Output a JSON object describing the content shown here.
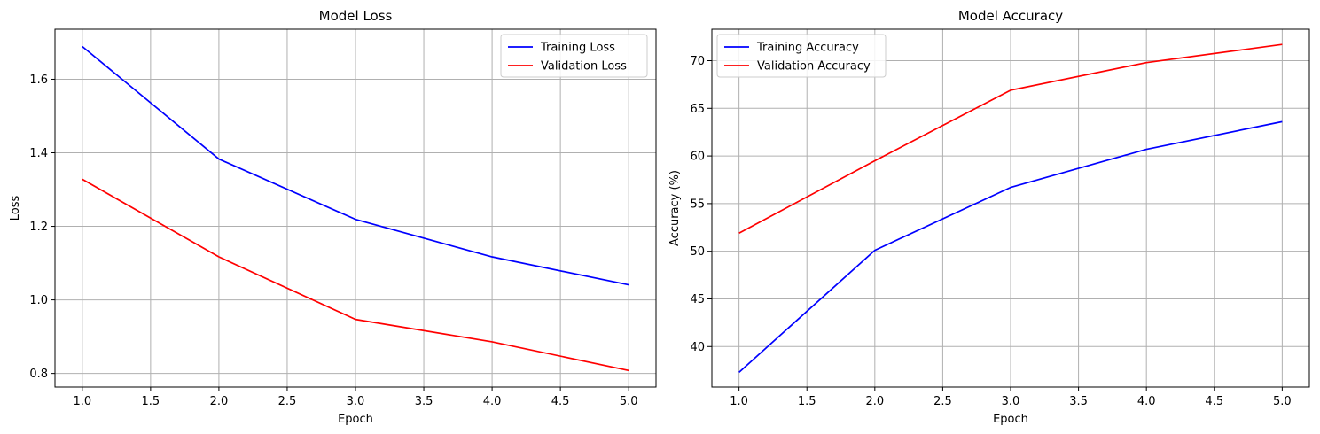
{
  "chart_data": [
    {
      "type": "line",
      "title": "Model Loss",
      "xlabel": "Epoch",
      "ylabel": "Loss",
      "x": [
        1,
        2,
        3,
        4,
        5
      ],
      "xlim": [
        0.8,
        5.2
      ],
      "ylim": [
        0.763,
        1.736
      ],
      "xticks": [
        "1.0",
        "1.5",
        "2.0",
        "2.5",
        "3.0",
        "3.5",
        "4.0",
        "4.5",
        "5.0"
      ],
      "yticks": [
        "0.8",
        "1.0",
        "1.2",
        "1.4",
        "1.6"
      ],
      "grid": true,
      "legend_position": "top-right",
      "series": [
        {
          "name": "Training Loss",
          "color": "#0000ff",
          "values": [
            1.689,
            1.383,
            1.219,
            1.117,
            1.041
          ]
        },
        {
          "name": "Validation Loss",
          "color": "#ff0000",
          "values": [
            1.328,
            1.117,
            0.947,
            0.886,
            0.808
          ]
        }
      ]
    },
    {
      "type": "line",
      "title": "Model Accuracy",
      "xlabel": "Epoch",
      "ylabel": "Accuracy (%)",
      "x": [
        1,
        2,
        3,
        4,
        5
      ],
      "xlim": [
        0.8,
        5.2
      ],
      "ylim": [
        35.75,
        73.3
      ],
      "xticks": [
        "1.0",
        "1.5",
        "2.0",
        "2.5",
        "3.0",
        "3.5",
        "4.0",
        "4.5",
        "5.0"
      ],
      "yticks": [
        "40",
        "45",
        "50",
        "55",
        "60",
        "65",
        "70"
      ],
      "grid": true,
      "legend_position": "top-left",
      "series": [
        {
          "name": "Training Accuracy",
          "color": "#0000ff",
          "values": [
            37.3,
            50.1,
            56.7,
            60.7,
            63.6
          ]
        },
        {
          "name": "Validation Accuracy",
          "color": "#ff0000",
          "values": [
            51.9,
            59.5,
            66.9,
            69.8,
            71.7
          ]
        }
      ]
    }
  ]
}
